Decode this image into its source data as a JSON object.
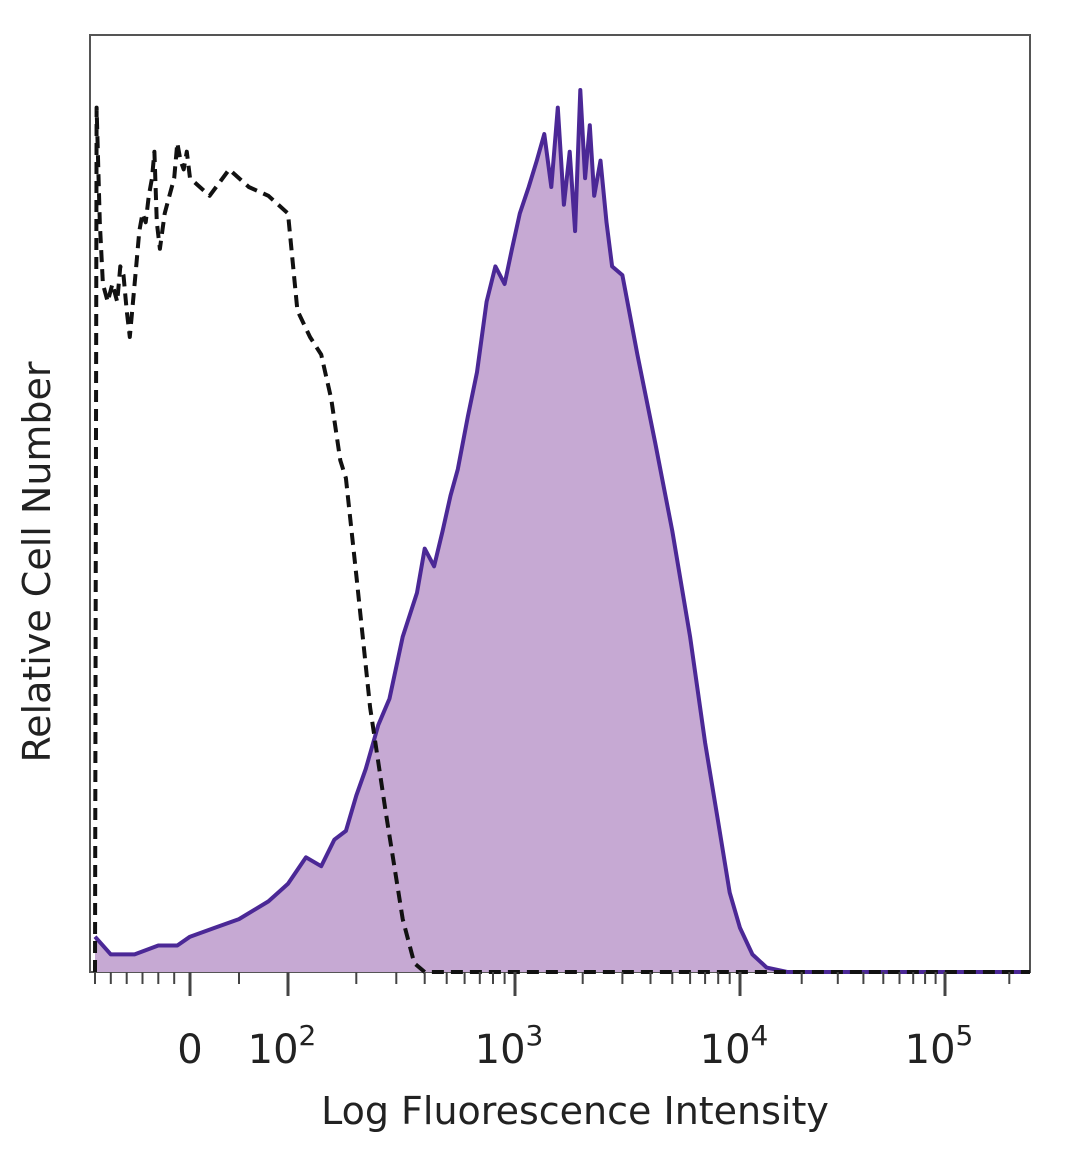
{
  "chart_data": {
    "type": "area",
    "title": "",
    "xlabel": "Log Fluorescence Intensity",
    "ylabel": "Relative Cell Number",
    "x_scale": "biexponential (log above 10^2)",
    "grid": false,
    "legend": "none",
    "x_ticks": [
      {
        "value": 0,
        "label": "0"
      },
      {
        "value": 100,
        "label": "10",
        "exp": "2"
      },
      {
        "value": 1000,
        "label": "10",
        "exp": "3"
      },
      {
        "value": 10000,
        "label": "10",
        "exp": "4"
      },
      {
        "value": 100000,
        "label": "10",
        "exp": "5"
      }
    ],
    "series": [
      {
        "style": "solid-filled",
        "color": "#4B2896",
        "fill": "#C6A9D3",
        "points": [
          [
            -600,
            0.04
          ],
          [
            -500,
            0.02
          ],
          [
            -350,
            0.02
          ],
          [
            -200,
            0.03
          ],
          [
            -80,
            0.03
          ],
          [
            0,
            0.04
          ],
          [
            25,
            0.05
          ],
          [
            50,
            0.06
          ],
          [
            80,
            0.08
          ],
          [
            100,
            0.1
          ],
          [
            120,
            0.13
          ],
          [
            140,
            0.12
          ],
          [
            160,
            0.15
          ],
          [
            180,
            0.16
          ],
          [
            200,
            0.2
          ],
          [
            220,
            0.23
          ],
          [
            250,
            0.28
          ],
          [
            280,
            0.31
          ],
          [
            320,
            0.38
          ],
          [
            370,
            0.43
          ],
          [
            400,
            0.48
          ],
          [
            440,
            0.46
          ],
          [
            480,
            0.5
          ],
          [
            520,
            0.54
          ],
          [
            560,
            0.57
          ],
          [
            620,
            0.63
          ],
          [
            680,
            0.68
          ],
          [
            750,
            0.76
          ],
          [
            820,
            0.8
          ],
          [
            900,
            0.78
          ],
          [
            970,
            0.82
          ],
          [
            1050,
            0.86
          ],
          [
            1150,
            0.89
          ],
          [
            1250,
            0.92
          ],
          [
            1350,
            0.95
          ],
          [
            1450,
            0.89
          ],
          [
            1550,
            0.98
          ],
          [
            1650,
            0.87
          ],
          [
            1750,
            0.93
          ],
          [
            1850,
            0.84
          ],
          [
            1950,
            1.0
          ],
          [
            2050,
            0.9
          ],
          [
            2150,
            0.96
          ],
          [
            2250,
            0.88
          ],
          [
            2400,
            0.92
          ],
          [
            2550,
            0.85
          ],
          [
            2700,
            0.8
          ],
          [
            3000,
            0.79
          ],
          [
            3500,
            0.7
          ],
          [
            4200,
            0.6
          ],
          [
            5000,
            0.5
          ],
          [
            6000,
            0.38
          ],
          [
            7000,
            0.26
          ],
          [
            8000,
            0.17
          ],
          [
            9000,
            0.09
          ],
          [
            10000,
            0.05
          ],
          [
            11500,
            0.02
          ],
          [
            13500,
            0.005
          ],
          [
            17000,
            0.0
          ],
          [
            30000,
            0.0
          ],
          [
            150000,
            0.0
          ],
          [
            250000,
            0.0
          ]
        ]
      },
      {
        "style": "dashed",
        "color": "#111111",
        "points": [
          [
            -600,
            0.0
          ],
          [
            -590,
            0.98
          ],
          [
            -570,
            0.85
          ],
          [
            -550,
            0.78
          ],
          [
            -520,
            0.76
          ],
          [
            -490,
            0.78
          ],
          [
            -460,
            0.76
          ],
          [
            -440,
            0.8
          ],
          [
            -420,
            0.79
          ],
          [
            -400,
            0.75
          ],
          [
            -380,
            0.72
          ],
          [
            -360,
            0.76
          ],
          [
            -340,
            0.8
          ],
          [
            -320,
            0.84
          ],
          [
            -300,
            0.86
          ],
          [
            -280,
            0.85
          ],
          [
            -260,
            0.88
          ],
          [
            -240,
            0.9
          ],
          [
            -225,
            0.93
          ],
          [
            -210,
            0.85
          ],
          [
            -190,
            0.82
          ],
          [
            -160,
            0.86
          ],
          [
            -130,
            0.88
          ],
          [
            -100,
            0.9
          ],
          [
            -80,
            0.94
          ],
          [
            -60,
            0.92
          ],
          [
            -40,
            0.91
          ],
          [
            -20,
            0.93
          ],
          [
            0,
            0.9
          ],
          [
            20,
            0.88
          ],
          [
            40,
            0.91
          ],
          [
            60,
            0.89
          ],
          [
            80,
            0.88
          ],
          [
            100,
            0.86
          ],
          [
            110,
            0.75
          ],
          [
            125,
            0.72
          ],
          [
            140,
            0.7
          ],
          [
            155,
            0.65
          ],
          [
            170,
            0.58
          ],
          [
            180,
            0.56
          ],
          [
            200,
            0.45
          ],
          [
            230,
            0.3
          ],
          [
            270,
            0.18
          ],
          [
            320,
            0.06
          ],
          [
            360,
            0.01
          ],
          [
            400,
            0.0
          ],
          [
            1000,
            0.0
          ],
          [
            10000,
            0.0
          ],
          [
            250000,
            0.0
          ]
        ]
      }
    ]
  }
}
